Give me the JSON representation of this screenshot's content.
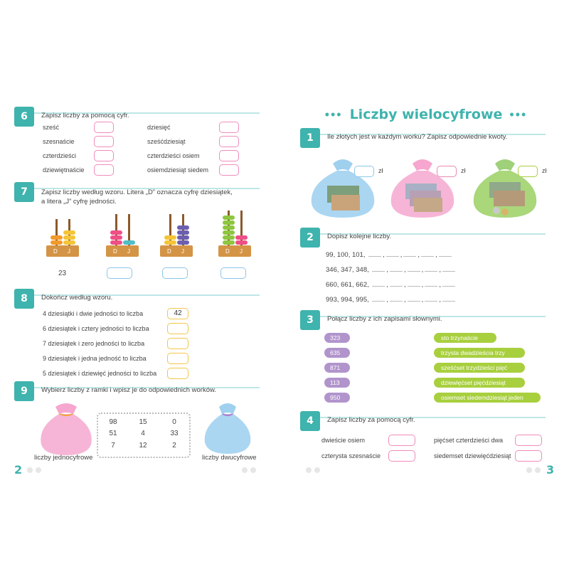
{
  "left": {
    "page_number": "2",
    "ex6": {
      "number": "6",
      "instruction": "Zapisz liczby za pomocą cyfr.",
      "col1": [
        "sześć",
        "szesnaście",
        "czterdzieści",
        "dziewiętnaście"
      ],
      "col2": [
        "dziesięć",
        "sześćdziesiąt",
        "czterdzieści osiem",
        "osiemdziesiąt siedem"
      ]
    },
    "ex7": {
      "number": "7",
      "instruction_line1": "Zapisz liczby według wzoru. Litera „D” oznacza cyfrę dziesiątek,",
      "instruction_line2": "a litera „J” cyfrę jedności.",
      "d_label": "D",
      "j_label": "J",
      "example_answer": "23"
    },
    "ex8": {
      "number": "8",
      "instruction": "Dokończ według wzoru.",
      "rows": [
        {
          "text": "4 dziesiątki i dwie jedności to liczba",
          "answer": "42"
        },
        {
          "text": "6 dziesiątek i cztery jedności to liczba",
          "answer": ""
        },
        {
          "text": "7 dziesiątek i zero jedności to liczba",
          "answer": ""
        },
        {
          "text": "9 dziesiątek i jedna jedność to liczba",
          "answer": ""
        },
        {
          "text": "5 dziesiątek i dziewięć jedności to liczba",
          "answer": ""
        }
      ]
    },
    "ex9": {
      "number": "9",
      "instruction": "Wybierz liczby z ramki i wpisz je do odpowiednich worków.",
      "grid": [
        [
          "98",
          "15",
          "0"
        ],
        [
          "51",
          "4",
          "33"
        ],
        [
          "7",
          "12",
          "2"
        ]
      ],
      "bag_left_label": "liczby jednocyfrowe",
      "bag_right_label": "liczby dwucyfrowe"
    }
  },
  "right": {
    "page_number": "3",
    "title": "Liczby wielocyfrowe",
    "ex1": {
      "number": "1",
      "instruction": "Ile złotych jest w każdym worku? Zapisz odpowiednie kwoty.",
      "currency": "zł"
    },
    "ex2": {
      "number": "2",
      "instruction": "Dopisz kolejne liczby.",
      "rows": [
        "99, 100, 101,",
        "346, 347, 348,",
        "660, 661, 662,",
        "993, 994, 995,"
      ]
    },
    "ex3": {
      "number": "3",
      "instruction": "Połącz liczby z ich zapisami słownymi.",
      "numbers": [
        "323",
        "635",
        "871",
        "113",
        "950"
      ],
      "words": [
        "sto trzynaście",
        "trzysta dwadzieścia trzy",
        "sześćset trzydzieści pięć",
        "dziewięćset pięćdziesiąt",
        "osiemset siedemdziesiąt jeden"
      ]
    },
    "ex4": {
      "number": "4",
      "instruction": "Zapisz liczby za pomocą cyfr.",
      "col1": [
        "dwieście osiem",
        "czterysta szesnaście"
      ],
      "col2": [
        "pięćset czterdzieści dwa",
        "siedemset dziewięćdziesiąt"
      ]
    }
  },
  "colors": {
    "accent": "#3fb3ad",
    "pink_box": "#f08cbc",
    "yellow_box": "#f3c54a",
    "blue_box": "#8dc6e8",
    "purple": "#b194cc",
    "green": "#a8cf3e"
  }
}
